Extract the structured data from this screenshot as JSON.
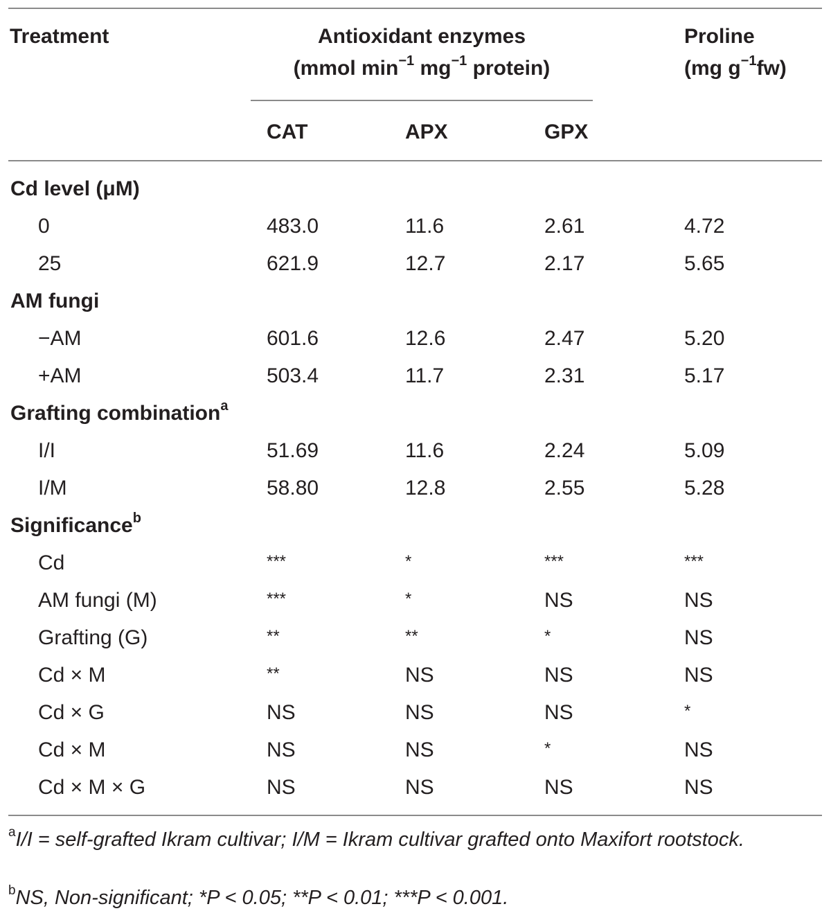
{
  "header": {
    "treatment": "Treatment",
    "enzymes_line1": "Antioxidant enzymes",
    "enzymes_line2_a": "(mmol min",
    "enzymes_line2_sup1": "−1",
    "enzymes_line2_b": " mg",
    "enzymes_line2_sup2": "−1",
    "enzymes_line2_c": " protein)",
    "proline_line1": "Proline",
    "proline_line2_a": "(mg g",
    "proline_line2_sup": "−1",
    "proline_line2_b": "fw)",
    "cat": "CAT",
    "apx": "APX",
    "gpx": "GPX"
  },
  "rows": [
    {
      "type": "section",
      "label": "Cd level (μM)",
      "sup": ""
    },
    {
      "type": "data",
      "label": "0",
      "cat": "483.0",
      "apx": "11.6",
      "gpx": "2.61",
      "proline": "4.72"
    },
    {
      "type": "data",
      "label": "25",
      "cat": "621.9",
      "apx": "12.7",
      "gpx": "2.17",
      "proline": "5.65"
    },
    {
      "type": "section",
      "label": "AM fungi",
      "sup": ""
    },
    {
      "type": "data",
      "label": "−AM",
      "cat": "601.6",
      "apx": "12.6",
      "gpx": "2.47",
      "proline": "5.20"
    },
    {
      "type": "data",
      "label": "+AM",
      "cat": "503.4",
      "apx": "11.7",
      "gpx": "2.31",
      "proline": "5.17"
    },
    {
      "type": "section",
      "label": "Grafting combination",
      "sup": "a"
    },
    {
      "type": "data",
      "label": "I/I",
      "cat": "51.69",
      "apx": "11.6",
      "gpx": "2.24",
      "proline": "5.09"
    },
    {
      "type": "data",
      "label": "I/M",
      "cat": "58.80",
      "apx": "12.8",
      "gpx": "2.55",
      "proline": "5.28"
    },
    {
      "type": "section",
      "label": "Significance",
      "sup": "b"
    },
    {
      "type": "data",
      "label": "Cd",
      "cat": "***",
      "apx": "*",
      "gpx": "***",
      "proline": "***"
    },
    {
      "type": "data",
      "label": "AM fungi (M)",
      "cat": "***",
      "apx": "*",
      "gpx": "NS",
      "proline": "NS"
    },
    {
      "type": "data",
      "label": "Grafting (G)",
      "cat": "**",
      "apx": "**",
      "gpx": "*",
      "proline": "NS"
    },
    {
      "type": "data",
      "label": "Cd × M",
      "cat": "**",
      "apx": "NS",
      "gpx": "NS",
      "proline": "NS"
    },
    {
      "type": "data",
      "label": "Cd × G",
      "cat": "NS",
      "apx": "NS",
      "gpx": "NS",
      "proline": "*"
    },
    {
      "type": "data",
      "label": "Cd × M",
      "cat": "NS",
      "apx": "NS",
      "gpx": "*",
      "proline": "NS"
    },
    {
      "type": "data",
      "label": "Cd × M × G",
      "cat": "NS",
      "apx": "NS",
      "gpx": "NS",
      "proline": "NS"
    }
  ],
  "footnotes": {
    "a_mark": "a",
    "a_text": "I/I = self-grafted Ikram cultivar; I/M = Ikram cultivar grafted onto Maxifort rootstock.",
    "b_mark": "b",
    "b_text": "NS, Non-significant; *P < 0.05; **P < 0.01; ***P < 0.001."
  }
}
